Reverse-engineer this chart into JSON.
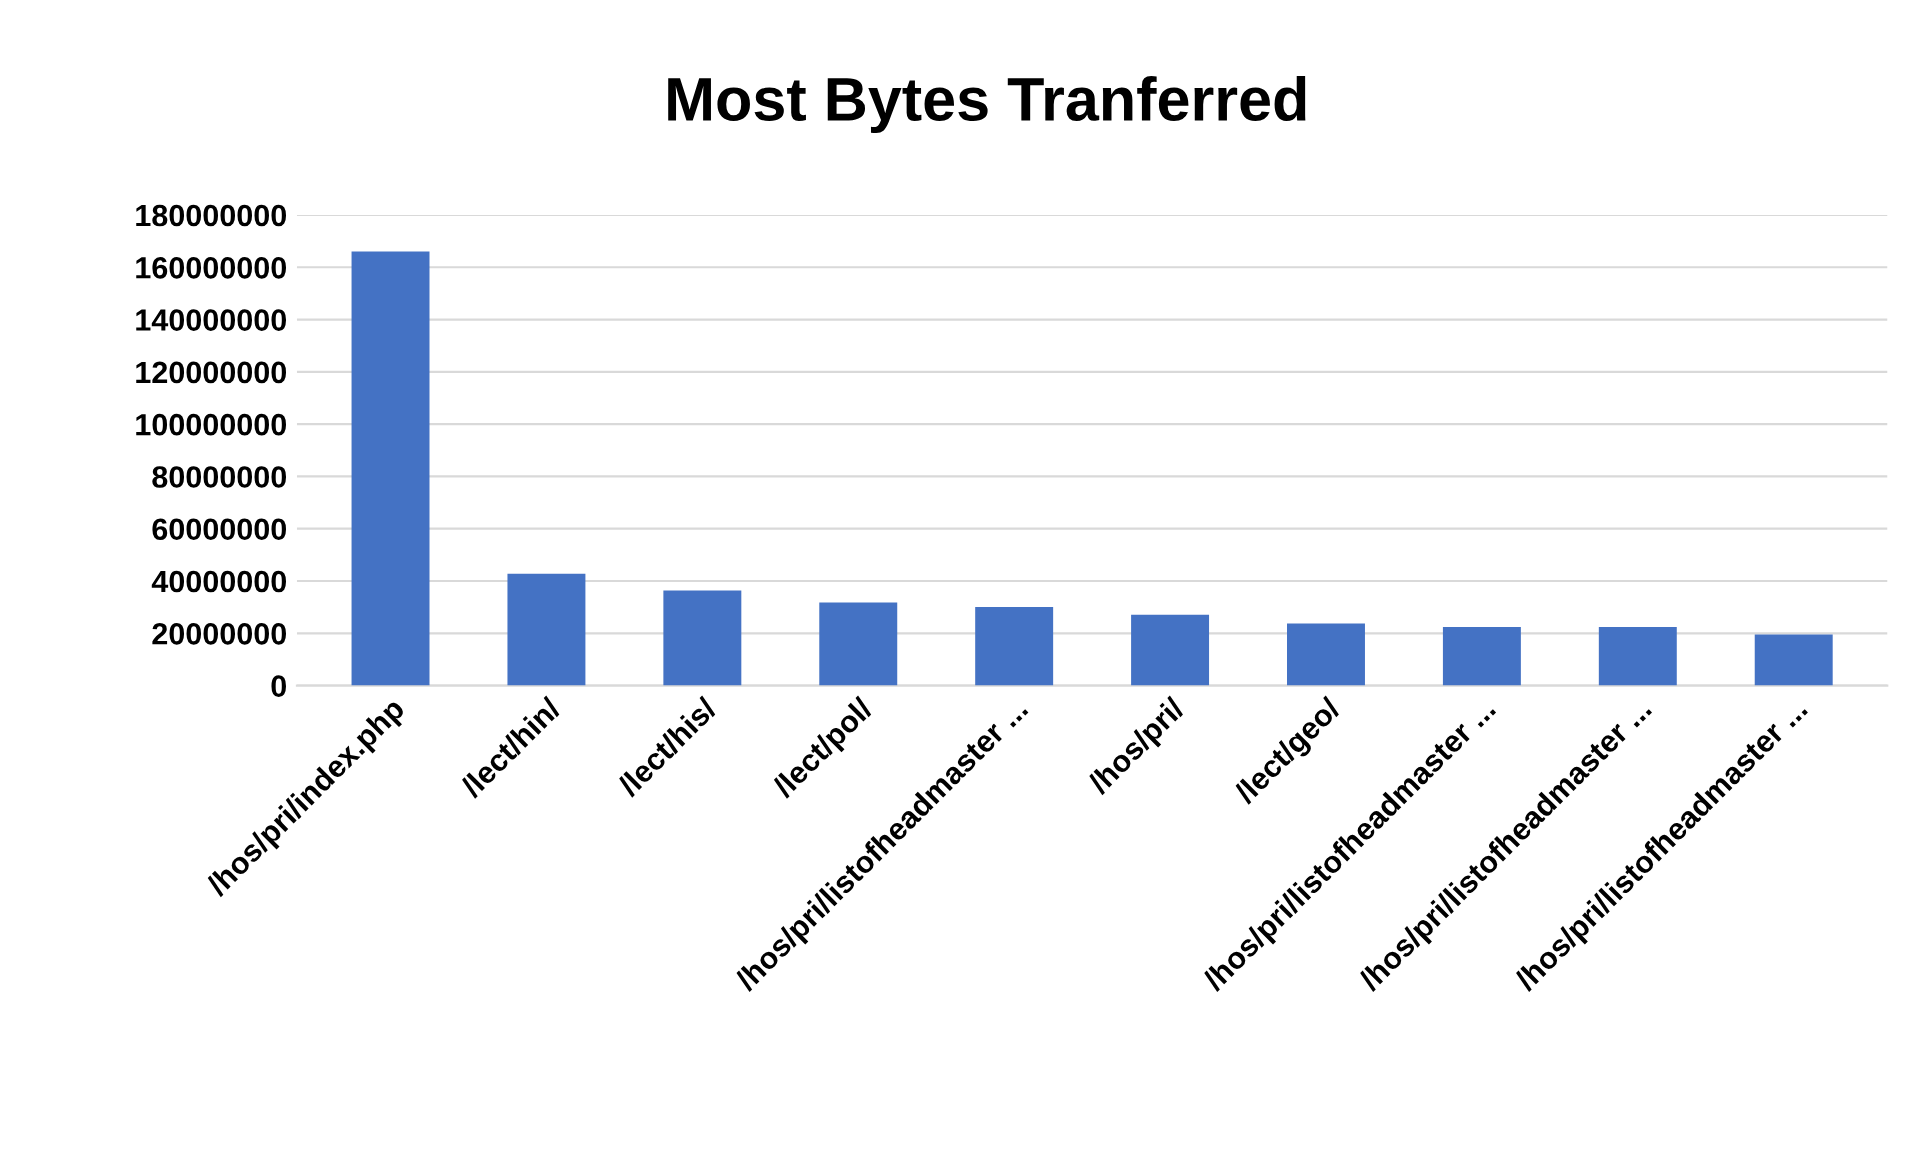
{
  "chart_data": {
    "type": "bar",
    "title": "Most Bytes Tranferred",
    "categories": [
      "/hos/pri/index.php",
      "/lect/hin/",
      "/lect/his/",
      "/lect/pol/",
      "/hos/pri/listofheadmaster ...",
      "/hos/pri/",
      "/lect/geo/",
      "/hos/pri/listofheadmaster ...",
      "/hos/pri/listofheadmaster ...",
      "/hos/pri/listofheadmaster ..."
    ],
    "values": [
      166000000,
      42800000,
      36400000,
      31800000,
      30100000,
      27100000,
      23700000,
      22400000,
      22400000,
      19500000
    ],
    "color": "#4472c4",
    "ylim": [
      0,
      180000000
    ],
    "yticks": [
      0,
      20000000,
      40000000,
      60000000,
      80000000,
      100000000,
      120000000,
      140000000,
      160000000,
      180000000
    ],
    "grid": "y",
    "legend": false
  }
}
